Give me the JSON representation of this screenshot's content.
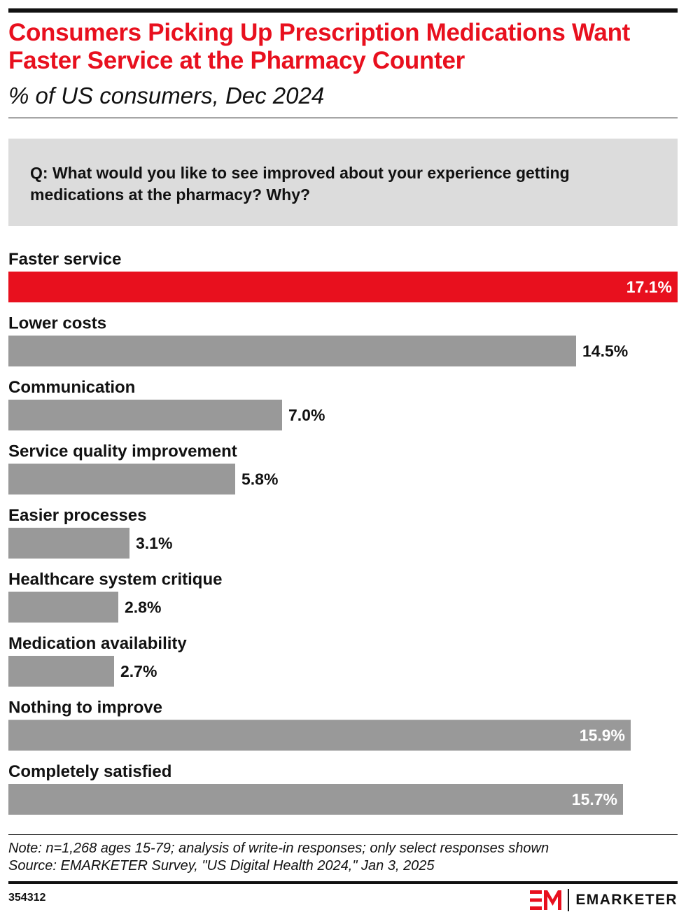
{
  "header": {
    "title": "Consumers Picking Up Prescription Medications Want Faster Service at the Pharmacy Counter",
    "subtitle": "% of US consumers, Dec 2024"
  },
  "question": "Q:  What would you like to see improved about your experience getting medications at the pharmacy? Why?",
  "chart_data": {
    "type": "bar",
    "orientation": "horizontal",
    "categories": [
      "Faster service",
      "Lower costs",
      "Communication",
      "Service quality improvement",
      "Easier processes",
      "Healthcare system critique",
      "Medication availability",
      "Nothing to improve",
      "Completely satisfied"
    ],
    "values": [
      17.1,
      14.5,
      7.0,
      5.8,
      3.1,
      2.8,
      2.7,
      15.9,
      15.7
    ],
    "value_labels": [
      "17.1%",
      "14.5%",
      "7.0%",
      "5.8%",
      "3.1%",
      "2.8%",
      "2.7%",
      "15.9%",
      "15.7%"
    ],
    "unit": "%",
    "highlight_index": 0,
    "colors": {
      "highlight": "#e8101e",
      "default": "#999999",
      "label_inside": "#ffffff",
      "label_outside": "#111111"
    },
    "xlim": [
      0,
      17.1
    ],
    "grid": false,
    "legend": "none"
  },
  "footer": {
    "note": "Note: n=1,268 ages 15-79; analysis of write-in responses; only select responses shown",
    "source": "Source: EMARKETER Survey, \"US Digital Health 2024,\" Jan 3, 2025",
    "chart_id": "354312",
    "brand_name": "EMARKETER"
  }
}
